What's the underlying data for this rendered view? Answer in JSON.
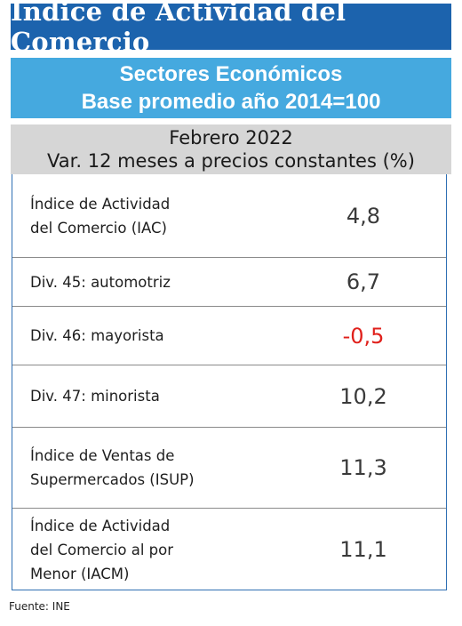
{
  "title": "Índice de Actividad del Comercio",
  "subtitle": {
    "line1": "Sectores Económicos",
    "line2": "Base promedio año 2014=100"
  },
  "header": {
    "line1": "Febrero 2022",
    "line2": "Var. 12 meses a precios constantes (%)"
  },
  "chart_data": {
    "type": "table",
    "title": "Índice de Actividad del Comercio",
    "columns": [
      "Febrero 2022 Var. 12 meses a precios constantes (%)"
    ],
    "rows": [
      {
        "label": "Índice de Actividad\ndel Comercio (IAC)",
        "value": "4,8",
        "numeric": 4.8,
        "color": "#3a3a3a"
      },
      {
        "label": "Div. 45: automotriz",
        "value": "6,7",
        "numeric": 6.7,
        "color": "#3a3a3a"
      },
      {
        "label": "Div. 46: mayorista",
        "value": "-0,5",
        "numeric": -0.5,
        "color": "#e0201b"
      },
      {
        "label": "Div. 47: minorista",
        "value": "10,2",
        "numeric": 10.2,
        "color": "#3a3a3a"
      },
      {
        "label": "Índice de Ventas de\nSupermercados (ISUP)",
        "value": "11,3",
        "numeric": 11.3,
        "color": "#3a3a3a"
      },
      {
        "label": "Índice de Actividad\ndel Comercio al por\nMenor (IACM)",
        "value": "11,1",
        "numeric": 11.1,
        "color": "#3a3a3a"
      }
    ]
  },
  "source": "Fuente: INE",
  "colors": {
    "title_bg": "#1c63ad",
    "subtitle_bg": "#45a9df",
    "header_bg": "#d6d6d6",
    "negative": "#e0201b"
  }
}
